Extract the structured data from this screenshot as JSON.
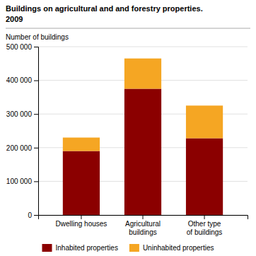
{
  "chart_data": {
    "type": "bar",
    "stacked": true,
    "title": "Buildings on agricultural and and forestry properties.",
    "subtitle": "2009",
    "ylabel": "Number of buildings",
    "categories": [
      "Dwelling houses",
      "Agricultural\nbuildings",
      "Other type\nof buildings"
    ],
    "series": [
      {
        "name": "Inhabited properties",
        "color": "#8B0000",
        "values": [
          190000,
          375000,
          228000
        ]
      },
      {
        "name": "Uninhabited properties",
        "color": "#F5A623",
        "values": [
          40000,
          90000,
          97000
        ]
      }
    ],
    "ylim": [
      0,
      500000
    ],
    "yticks": [
      0,
      {
        "value": 100000,
        "label": "100 000"
      },
      {
        "value": 200000,
        "label": "200 000"
      },
      {
        "value": 300000,
        "label": "300 000"
      },
      {
        "value": 400000,
        "label": "400 000"
      },
      {
        "value": 500000,
        "label": "500 000"
      }
    ],
    "grid": true,
    "legend": "bottom"
  }
}
